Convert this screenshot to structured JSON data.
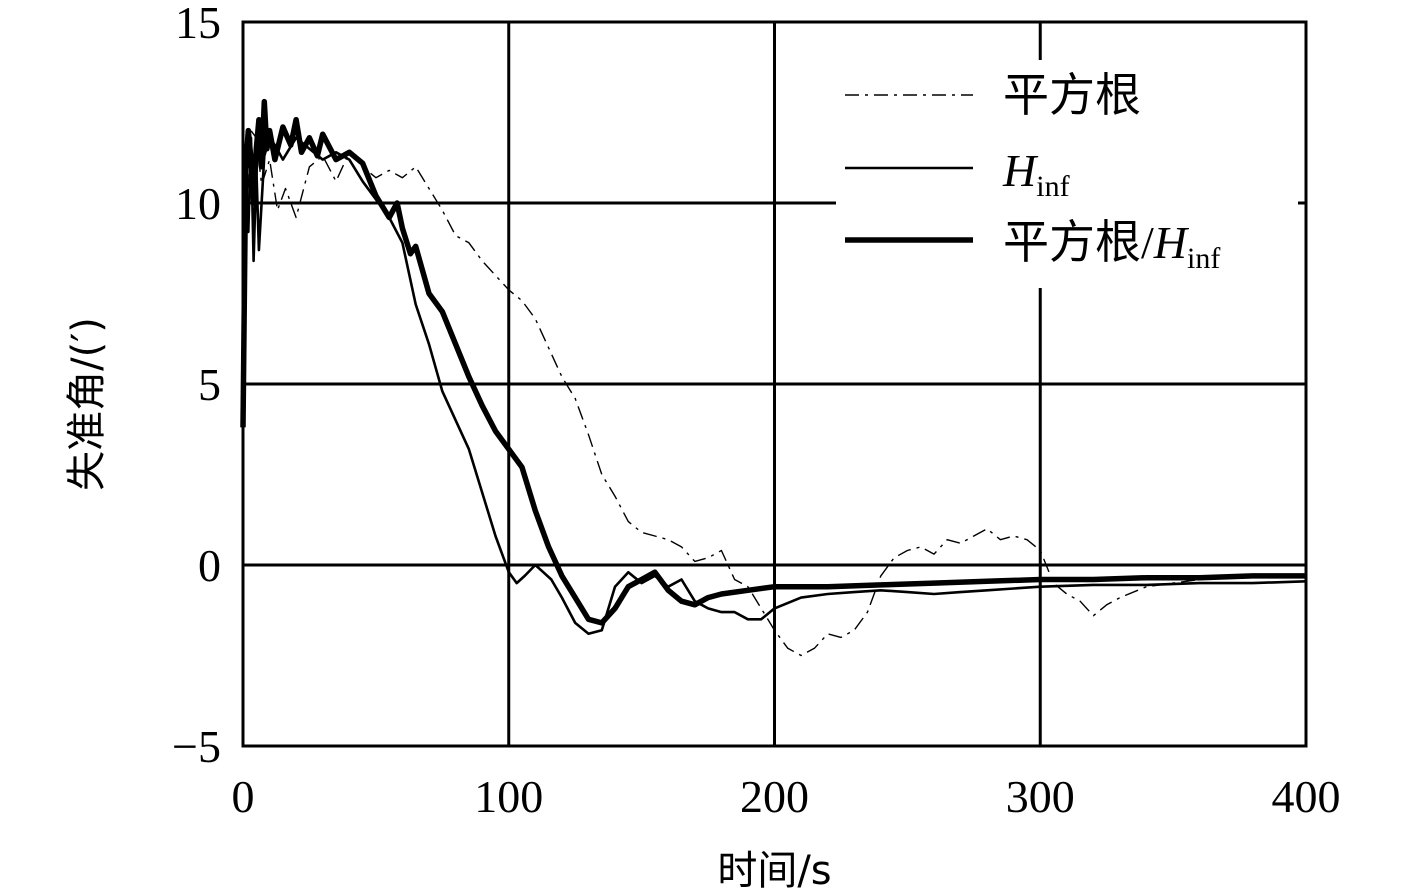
{
  "chart_data": {
    "type": "line",
    "xlabel": "时间/s",
    "ylabel": "失准角/(′)",
    "xlim": [
      0,
      400
    ],
    "ylim": [
      -5,
      15
    ],
    "xticks": [
      0,
      100,
      200,
      300,
      400
    ],
    "yticks": [
      -5,
      0,
      5,
      10,
      15
    ],
    "xtick_labels": [
      "0",
      "100",
      "200",
      "300",
      "400"
    ],
    "ytick_labels": [
      "−5",
      "0",
      "5",
      "10",
      "15"
    ],
    "grid": true,
    "legend_position": "top-right",
    "series": [
      {
        "name": "平方根",
        "style": "dash-dot-thin",
        "x": [
          0,
          1,
          2,
          3,
          5,
          7,
          10,
          13,
          16,
          20,
          25,
          30,
          35,
          40,
          45,
          50,
          55,
          60,
          65,
          70,
          75,
          80,
          85,
          90,
          95,
          100,
          105,
          110,
          115,
          120,
          125,
          130,
          135,
          140,
          145,
          150,
          155,
          160,
          165,
          170,
          175,
          180,
          185,
          190,
          195,
          200,
          205,
          210,
          215,
          220,
          225,
          230,
          235,
          240,
          245,
          250,
          255,
          260,
          265,
          270,
          275,
          280,
          285,
          290,
          295,
          300,
          305,
          310,
          315,
          320,
          325,
          330,
          340,
          350,
          360,
          370,
          380,
          390,
          400
        ],
        "values": [
          4.0,
          8.5,
          11.0,
          12.0,
          11.8,
          10.5,
          11.2,
          9.8,
          10.4,
          9.6,
          11.0,
          11.3,
          10.6,
          11.4,
          11.0,
          10.7,
          10.9,
          10.7,
          11.0,
          10.4,
          9.8,
          9.1,
          8.9,
          8.4,
          8.0,
          7.6,
          7.3,
          6.8,
          6.0,
          5.2,
          4.6,
          3.6,
          2.5,
          1.9,
          1.2,
          0.9,
          0.8,
          0.7,
          0.5,
          0.1,
          0.2,
          0.4,
          -0.4,
          -0.6,
          -1.2,
          -1.8,
          -2.3,
          -2.5,
          -2.3,
          -1.9,
          -2.0,
          -1.8,
          -1.3,
          -0.3,
          0.2,
          0.4,
          0.5,
          0.3,
          0.7,
          0.6,
          0.8,
          1.0,
          0.7,
          0.8,
          0.7,
          0.4,
          -0.5,
          -0.8,
          -1.0,
          -1.4,
          -1.1,
          -0.9,
          -0.6,
          -0.5,
          -0.4,
          -0.35,
          -0.3,
          -0.3,
          -0.3
        ]
      },
      {
        "name": "H_inf",
        "style": "solid-thin",
        "x": [
          0,
          1,
          2,
          3,
          4,
          5,
          6,
          7,
          8,
          10,
          12,
          15,
          20,
          25,
          30,
          35,
          40,
          45,
          50,
          55,
          60,
          65,
          70,
          75,
          80,
          85,
          90,
          95,
          100,
          103,
          106,
          110,
          113,
          116,
          120,
          125,
          130,
          135,
          140,
          145,
          150,
          155,
          160,
          165,
          170,
          175,
          180,
          185,
          190,
          195,
          200,
          210,
          220,
          230,
          240,
          250,
          260,
          270,
          280,
          290,
          300,
          320,
          340,
          360,
          380,
          400
        ],
        "values": [
          3.8,
          10.5,
          9.2,
          11.8,
          8.4,
          11.0,
          8.7,
          10.0,
          11.3,
          11.8,
          11.6,
          11.2,
          11.8,
          11.5,
          11.2,
          11.4,
          11.2,
          10.6,
          10.1,
          9.6,
          8.9,
          7.2,
          6.1,
          4.8,
          4.0,
          3.2,
          2.0,
          0.8,
          -0.2,
          -0.5,
          -0.3,
          0.0,
          -0.2,
          -0.4,
          -0.9,
          -1.6,
          -1.9,
          -1.8,
          -0.6,
          -0.2,
          -0.5,
          -0.3,
          -0.6,
          -0.4,
          -1.0,
          -1.2,
          -1.3,
          -1.3,
          -1.5,
          -1.5,
          -1.2,
          -0.9,
          -0.8,
          -0.75,
          -0.7,
          -0.75,
          -0.8,
          -0.75,
          -0.7,
          -0.65,
          -0.6,
          -0.55,
          -0.55,
          -0.5,
          -0.5,
          -0.45
        ]
      },
      {
        "name": "平方根/H_inf",
        "style": "solid-thick",
        "x": [
          0,
          1,
          2,
          3,
          4,
          5,
          6,
          7,
          8,
          9,
          10,
          12,
          15,
          18,
          20,
          22,
          25,
          28,
          30,
          35,
          40,
          45,
          50,
          55,
          58,
          60,
          63,
          65,
          70,
          75,
          80,
          85,
          90,
          95,
          100,
          105,
          110,
          115,
          120,
          125,
          130,
          135,
          140,
          145,
          150,
          155,
          160,
          165,
          170,
          175,
          180,
          190,
          200,
          220,
          240,
          260,
          280,
          300,
          320,
          340,
          360,
          380,
          400
        ],
        "values": [
          3.8,
          11.0,
          12.0,
          11.2,
          10.0,
          11.5,
          12.3,
          11.0,
          12.8,
          11.5,
          12.0,
          11.2,
          12.1,
          11.6,
          12.3,
          11.4,
          11.8,
          11.3,
          11.9,
          11.2,
          11.4,
          11.1,
          10.2,
          9.6,
          10.0,
          9.3,
          8.6,
          8.8,
          7.5,
          7.0,
          6.1,
          5.2,
          4.4,
          3.7,
          3.2,
          2.7,
          1.5,
          0.5,
          -0.3,
          -0.9,
          -1.5,
          -1.6,
          -1.2,
          -0.6,
          -0.4,
          -0.2,
          -0.7,
          -1.0,
          -1.1,
          -0.9,
          -0.8,
          -0.7,
          -0.6,
          -0.6,
          -0.55,
          -0.5,
          -0.45,
          -0.4,
          -0.4,
          -0.35,
          -0.35,
          -0.3,
          -0.3
        ]
      }
    ]
  },
  "legend": {
    "entries": [
      {
        "main": "平方根",
        "sub_label": "",
        "tail": ""
      },
      {
        "main": "H",
        "sub_label": "inf",
        "tail": ""
      },
      {
        "main": "平方根/",
        "italic": "H",
        "sub_label": "inf"
      }
    ]
  }
}
